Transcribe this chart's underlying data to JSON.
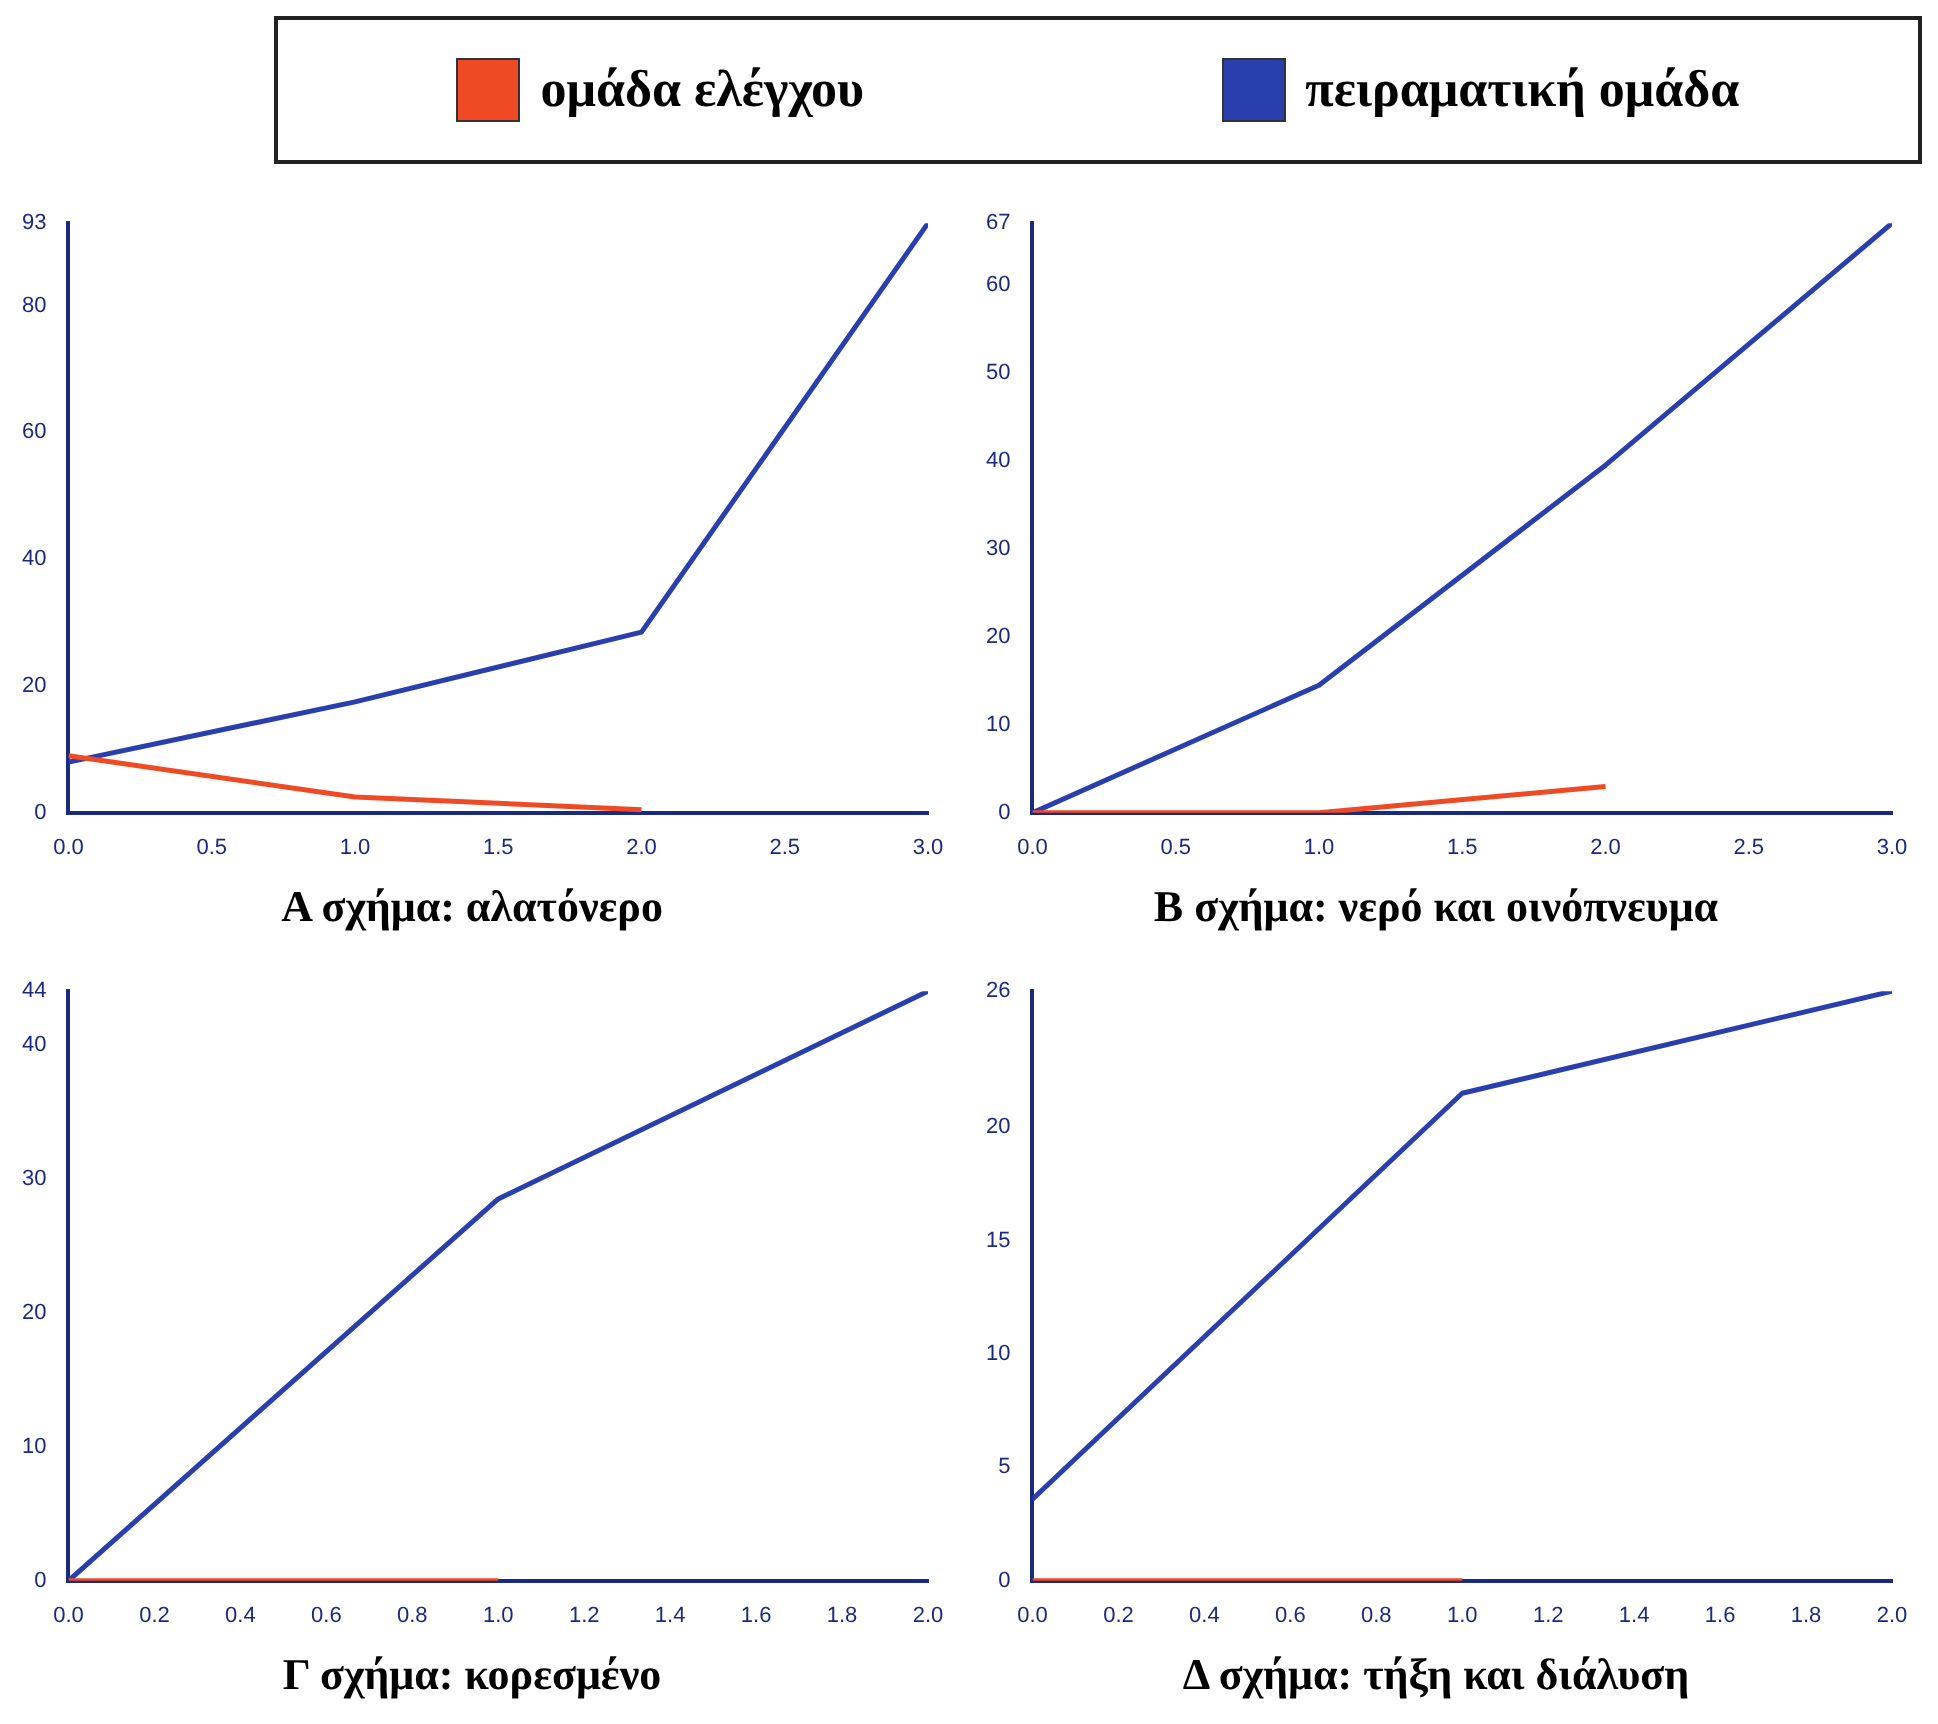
{
  "chart_data": [
    {
      "type": "line",
      "title": "Α σχήμα: αλατόνερο",
      "legend": "top",
      "grid": false,
      "xlim": [
        0,
        3
      ],
      "xticks": [
        {
          "value": 0,
          "label": "0.0"
        },
        0.5,
        {
          "value": 1,
          "label": "1.0"
        },
        1.5,
        {
          "value": 2,
          "label": "2.0"
        },
        2.5,
        {
          "value": 3,
          "label": "3.0"
        }
      ],
      "ylim": [
        0,
        93
      ],
      "yticks": [
        0,
        20,
        40,
        60,
        80,
        93
      ],
      "series": [
        {
          "name": "ομάδα ελέγχου",
          "color": "#f04a24",
          "x": [
            0,
            1,
            2
          ],
          "values": [
            9,
            2.5,
            0.5
          ]
        },
        {
          "name": "πειραματική ομάδα",
          "color": "#2a3fae",
          "x": [
            0,
            1,
            2,
            3
          ],
          "values": [
            8,
            17.5,
            28.5,
            93
          ]
        }
      ]
    },
    {
      "type": "line",
      "title": "Β σχήμα: νερό και οινόπνευμα",
      "grid": false,
      "xlim": [
        0,
        3
      ],
      "xticks": [
        {
          "value": 0,
          "label": "0.0"
        },
        0.5,
        {
          "value": 1,
          "label": "1.0"
        },
        1.5,
        {
          "value": 2,
          "label": "2.0"
        },
        2.5,
        {
          "value": 3,
          "label": "3.0"
        }
      ],
      "ylim": [
        0,
        67
      ],
      "yticks": [
        0,
        10,
        20,
        30,
        40,
        50,
        60,
        67
      ],
      "series": [
        {
          "color": "#f04a24",
          "x": [
            0,
            1,
            2
          ],
          "values": [
            0,
            0,
            3
          ]
        },
        {
          "color": "#2a3fae",
          "x": [
            0,
            1,
            2,
            3
          ],
          "values": [
            0,
            14.5,
            39.5,
            67
          ]
        }
      ]
    },
    {
      "type": "line",
      "title": "Γ σχήμα: κορεσμένο",
      "grid": false,
      "xlim": [
        0,
        2
      ],
      "xticks": [
        {
          "value": 0,
          "label": "0.0"
        },
        0.2,
        0.4,
        0.6,
        0.8,
        {
          "value": 1,
          "label": "1.0"
        },
        1.2,
        1.4,
        1.6,
        1.8,
        {
          "value": 2,
          "label": "2.0"
        }
      ],
      "ylim": [
        0,
        44
      ],
      "yticks": [
        0,
        10,
        20,
        30,
        40,
        44
      ],
      "series": [
        {
          "color": "#f04a24",
          "x": [
            0,
            1
          ],
          "values": [
            0,
            0
          ]
        },
        {
          "color": "#2a3fae",
          "x": [
            0,
            1,
            2
          ],
          "values": [
            0,
            28.5,
            44
          ]
        }
      ]
    },
    {
      "type": "line",
      "title": "Δ σχήμα: τήξη και διάλυση",
      "grid": false,
      "xlim": [
        0,
        2
      ],
      "xticks": [
        {
          "value": 0,
          "label": "0.0"
        },
        0.2,
        0.4,
        0.6,
        0.8,
        {
          "value": 1,
          "label": "1.0"
        },
        1.2,
        1.4,
        1.6,
        1.8,
        {
          "value": 2,
          "label": "2.0"
        }
      ],
      "ylim": [
        0,
        26
      ],
      "yticks": [
        0,
        5,
        10,
        15,
        20,
        26
      ],
      "series": [
        {
          "color": "#f04a24",
          "x": [
            0,
            1
          ],
          "values": [
            0,
            0
          ]
        },
        {
          "color": "#2a3fae",
          "x": [
            0,
            1,
            2
          ],
          "values": [
            3.6,
            21.5,
            26
          ]
        }
      ]
    }
  ]
}
